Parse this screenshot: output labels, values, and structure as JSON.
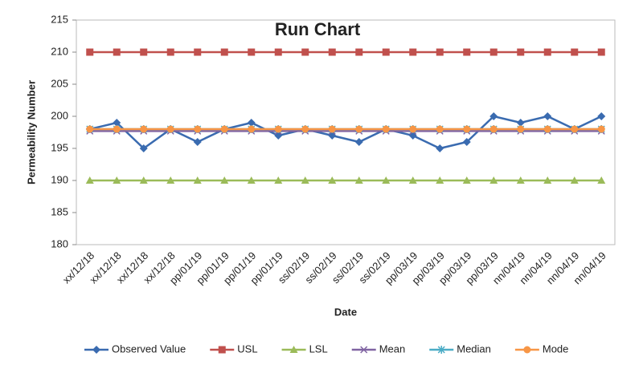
{
  "chart_data": {
    "type": "line",
    "title": "Run Chart",
    "x_label": "Date",
    "y_label": "Permeability Number",
    "categories": [
      "xx/12/18",
      "xx/12/18",
      "xx/12/18",
      "xx/12/18",
      "pp/01/19",
      "pp/01/19",
      "pp/01/19",
      "pp/01/19",
      "ss/02/19",
      "ss/02/19",
      "ss/02/19",
      "ss/02/19",
      "pp/03/19",
      "pp/03/19",
      "pp/03/19",
      "pp/03/19",
      "nn/04/19",
      "nn/04/19",
      "nn/04/19",
      "nn/04/19"
    ],
    "series": [
      {
        "name": "Observed Value",
        "color": "#3a6bb0",
        "marker": "diamond",
        "values": [
          198,
          199,
          195,
          198,
          196,
          198,
          199,
          197,
          198,
          197,
          196,
          198,
          197,
          195,
          196,
          200,
          199,
          200,
          198,
          200
        ]
      },
      {
        "name": "USL",
        "color": "#c0504d",
        "marker": "square",
        "values": [
          210,
          210,
          210,
          210,
          210,
          210,
          210,
          210,
          210,
          210,
          210,
          210,
          210,
          210,
          210,
          210,
          210,
          210,
          210,
          210
        ]
      },
      {
        "name": "LSL",
        "color": "#9bbb59",
        "marker": "triangle",
        "values": [
          190,
          190,
          190,
          190,
          190,
          190,
          190,
          190,
          190,
          190,
          190,
          190,
          190,
          190,
          190,
          190,
          190,
          190,
          190,
          190
        ]
      },
      {
        "name": "Mean",
        "color": "#8064a2",
        "marker": "x",
        "values": [
          197.7,
          197.7,
          197.7,
          197.7,
          197.7,
          197.7,
          197.7,
          197.7,
          197.7,
          197.7,
          197.7,
          197.7,
          197.7,
          197.7,
          197.7,
          197.7,
          197.7,
          197.7,
          197.7,
          197.7
        ]
      },
      {
        "name": "Median",
        "color": "#4bacc6",
        "marker": "star",
        "values": [
          198,
          198,
          198,
          198,
          198,
          198,
          198,
          198,
          198,
          198,
          198,
          198,
          198,
          198,
          198,
          198,
          198,
          198,
          198,
          198
        ]
      },
      {
        "name": "Mode",
        "color": "#f79646",
        "marker": "circle",
        "values": [
          198,
          198,
          198,
          198,
          198,
          198,
          198,
          198,
          198,
          198,
          198,
          198,
          198,
          198,
          198,
          198,
          198,
          198,
          198,
          198
        ]
      }
    ],
    "ylim": [
      180,
      215
    ],
    "yticks": [
      180,
      185,
      190,
      195,
      200,
      205,
      210,
      215
    ],
    "grid": false,
    "legend": "bottom"
  }
}
